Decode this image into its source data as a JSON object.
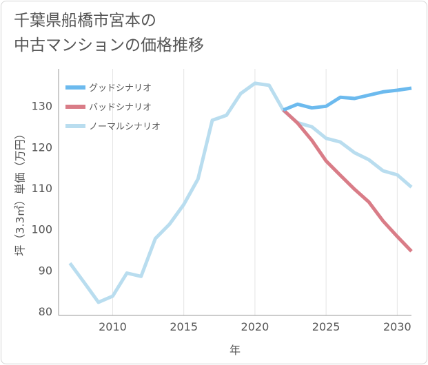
{
  "title_lines": [
    "千葉県船橋市宮本の",
    "中古マンションの価格推移"
  ],
  "chart_data": {
    "type": "line",
    "xlabel": "年",
    "ylabel": "坪（3.3㎡）単価（万円）",
    "xlim": [
      2006.2,
      2031
    ],
    "ylim": [
      79,
      139
    ],
    "x_ticks": [
      2010,
      2015,
      2020,
      2025,
      2030
    ],
    "y_ticks": [
      80,
      90,
      100,
      110,
      120,
      130
    ],
    "grid": "vertical",
    "legend_position": "top-left",
    "series": [
      {
        "name": "グッドシナリオ",
        "color": "#6cbaee",
        "points": [
          [
            2022,
            129.0
          ],
          [
            2023,
            130.4
          ],
          [
            2024,
            129.5
          ],
          [
            2025,
            129.9
          ],
          [
            2026,
            132.1
          ],
          [
            2027,
            131.8
          ],
          [
            2028,
            132.6
          ],
          [
            2029,
            133.4
          ],
          [
            2030,
            133.8
          ],
          [
            2031,
            134.3
          ]
        ]
      },
      {
        "name": "バッドシナリオ",
        "color": "#d97c87",
        "points": [
          [
            2022,
            129.0
          ],
          [
            2023,
            125.8
          ],
          [
            2024,
            121.6
          ],
          [
            2025,
            116.6
          ],
          [
            2026,
            113.1
          ],
          [
            2027,
            109.7
          ],
          [
            2028,
            106.6
          ],
          [
            2029,
            102.0
          ],
          [
            2030,
            98.2
          ],
          [
            2031,
            94.6
          ]
        ]
      },
      {
        "name": "ノーマルシナリオ",
        "color": "#b9ddef",
        "points": [
          [
            2007,
            91.7
          ],
          [
            2008,
            87.0
          ],
          [
            2009,
            82.2
          ],
          [
            2010,
            83.7
          ],
          [
            2011,
            89.3
          ],
          [
            2012,
            88.5
          ],
          [
            2013,
            97.7
          ],
          [
            2014,
            101.2
          ],
          [
            2015,
            106.0
          ],
          [
            2016,
            112.2
          ],
          [
            2017,
            126.5
          ],
          [
            2018,
            127.7
          ],
          [
            2019,
            133.0
          ],
          [
            2020,
            135.5
          ],
          [
            2021,
            135.0
          ],
          [
            2022,
            128.9
          ],
          [
            2023,
            125.9
          ],
          [
            2024,
            124.9
          ],
          [
            2025,
            122.1
          ],
          [
            2026,
            121.2
          ],
          [
            2027,
            118.6
          ],
          [
            2028,
            116.9
          ],
          [
            2029,
            114.2
          ],
          [
            2030,
            113.2
          ],
          [
            2031,
            110.2
          ]
        ]
      }
    ]
  }
}
